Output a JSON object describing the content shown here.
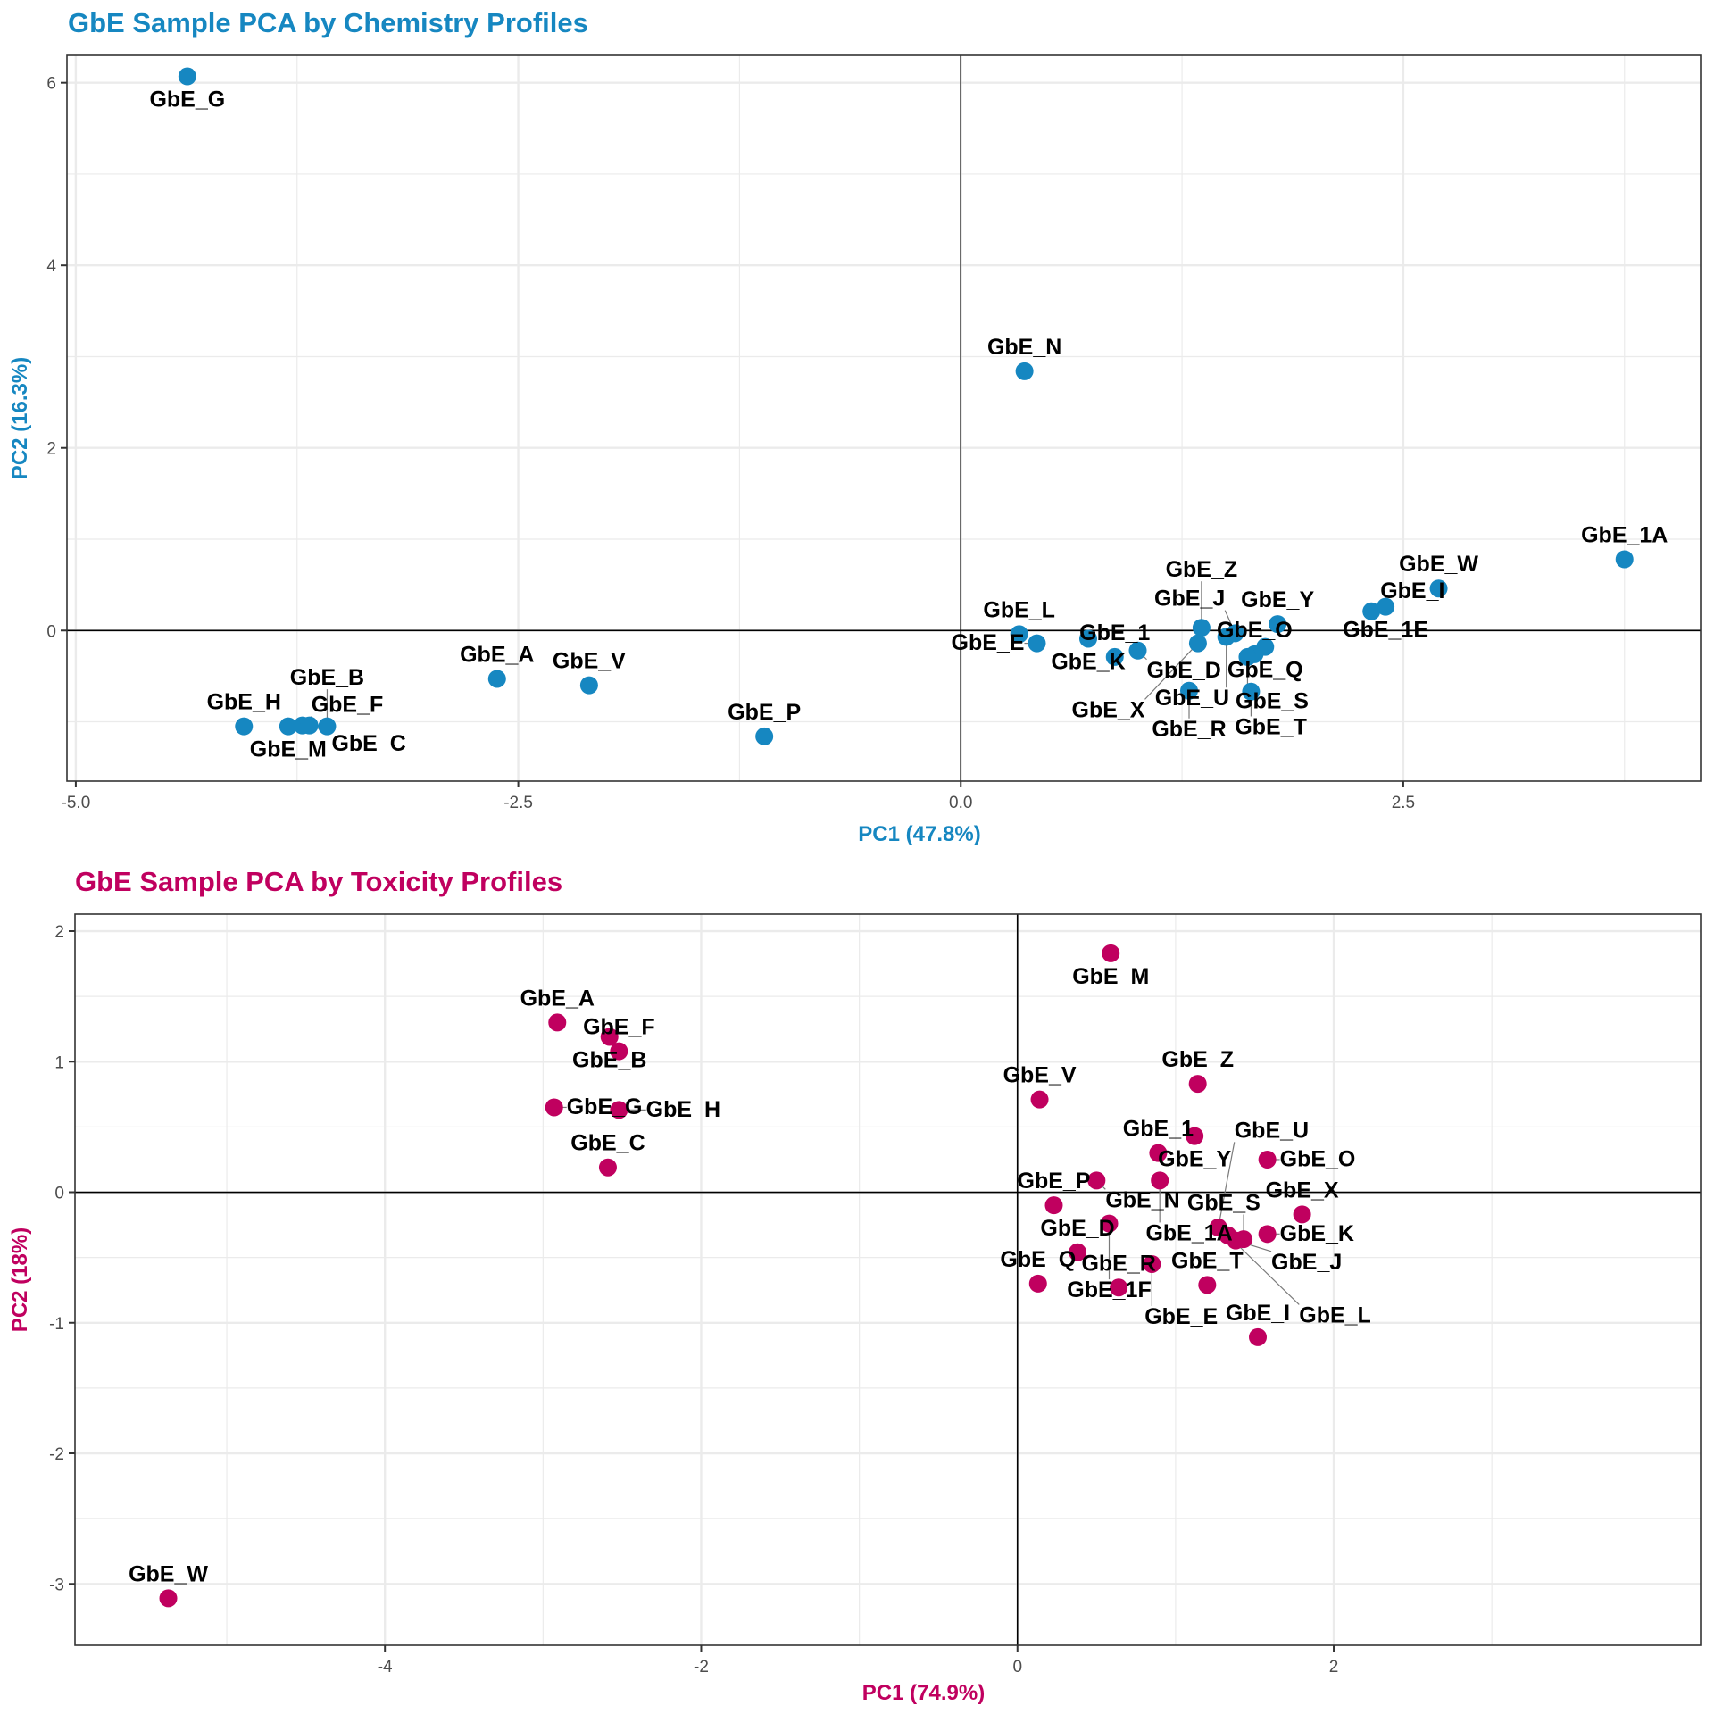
{
  "colors": {
    "chemistry": "#1687c1",
    "toxicity": "#c0005f",
    "grid": "#ebebeb",
    "axis_text": "#4d4d4d",
    "panel_border": "#333333"
  },
  "chart_data": [
    {
      "type": "scatter",
      "title": "GbE Sample PCA by Chemistry Profiles",
      "xlabel": "PC1 (47.8%)",
      "ylabel": "PC2 (16.3%)",
      "xlim": [
        -5.05,
        4.18
      ],
      "ylim": [
        -1.65,
        6.3
      ],
      "xticks": [
        -5.0,
        -2.5,
        0.0,
        2.5
      ],
      "xtick_labels": [
        "-5.0",
        "-2.5",
        "0.0",
        "2.5"
      ],
      "yticks": [
        0,
        2,
        4,
        6
      ],
      "ytick_labels": [
        "0",
        "2",
        "4",
        "6"
      ],
      "x_minor": [
        -3.75,
        -1.25,
        1.25,
        3.75
      ],
      "y_minor": [
        -1,
        1,
        3,
        5
      ],
      "grid": true,
      "reference_lines": {
        "x": 0,
        "y": 0
      },
      "legend": "none",
      "points": [
        {
          "label": "GbE_G",
          "x": -4.37,
          "y": 6.07
        },
        {
          "label": "GbE_N",
          "x": 0.36,
          "y": 2.84
        },
        {
          "label": "GbE_1A",
          "x": 3.75,
          "y": 0.78
        },
        {
          "label": "GbE_W",
          "x": 2.7,
          "y": 0.46
        },
        {
          "label": "GbE_1E",
          "x": 2.4,
          "y": 0.26
        },
        {
          "label": "GbE_I",
          "x": 2.32,
          "y": 0.21
        },
        {
          "label": "GbE_Y",
          "x": 1.79,
          "y": 0.07
        },
        {
          "label": "GbE_Z",
          "x": 1.36,
          "y": 0.03
        },
        {
          "label": "GbE_J",
          "x": 1.55,
          "y": -0.03
        },
        {
          "label": "GbE_U",
          "x": 1.5,
          "y": -0.07
        },
        {
          "label": "GbE_Q",
          "x": 1.72,
          "y": -0.18
        },
        {
          "label": "GbE_O",
          "x": 1.66,
          "y": -0.26
        },
        {
          "label": "GbE_S",
          "x": 1.62,
          "y": -0.29
        },
        {
          "label": "GbE_X",
          "x": 1.34,
          "y": -0.14
        },
        {
          "label": "GbE_R",
          "x": 1.29,
          "y": -0.66
        },
        {
          "label": "GbE_T",
          "x": 1.64,
          "y": -0.67
        },
        {
          "label": "GbE_K",
          "x": 0.72,
          "y": -0.09
        },
        {
          "label": "GbE_D",
          "x": 1.0,
          "y": -0.22
        },
        {
          "label": "GbE_L",
          "x": 0.33,
          "y": -0.04
        },
        {
          "label": "GbE_E",
          "x": 0.43,
          "y": -0.14
        },
        {
          "label": "GbE_1",
          "x": 0.87,
          "y": -0.29
        },
        {
          "label": "GbE_V",
          "x": -2.1,
          "y": -0.6
        },
        {
          "label": "GbE_A",
          "x": -2.62,
          "y": -0.53
        },
        {
          "label": "GbE_P",
          "x": -1.11,
          "y": -1.16
        },
        {
          "label": "GbE_H",
          "x": -4.05,
          "y": -1.05
        },
        {
          "label": "GbE_M",
          "x": -3.8,
          "y": -1.05
        },
        {
          "label": "GbE_F",
          "x": -3.72,
          "y": -1.04
        },
        {
          "label": "GbE_C",
          "x": -3.68,
          "y": -1.04
        },
        {
          "label": "GbE_B",
          "x": -3.58,
          "y": -1.05
        }
      ]
    },
    {
      "type": "scatter",
      "title": "GbE Sample PCA by Toxicity Profiles",
      "xlabel": "PC1 (74.9%)",
      "ylabel": "PC2 (18%)",
      "xlim": [
        -5.96,
        4.32
      ],
      "ylim": [
        -3.47,
        2.13
      ],
      "xticks": [
        -4,
        -2,
        0,
        2
      ],
      "xtick_labels": [
        "-4",
        "-2",
        "0",
        "2"
      ],
      "yticks": [
        -3,
        -2,
        -1,
        0,
        1,
        2
      ],
      "ytick_labels": [
        "-3",
        "-2",
        "-1",
        "0",
        "1",
        "2"
      ],
      "x_minor": [
        -5,
        -3,
        -1,
        1,
        3
      ],
      "y_minor": [
        -2.5,
        -1.5,
        -0.5,
        0.5,
        1.5
      ],
      "grid": true,
      "reference_lines": {
        "x": 0,
        "y": 0
      },
      "legend": "none",
      "points": [
        {
          "label": "GbE_M",
          "x": 0.59,
          "y": 1.83
        },
        {
          "label": "GbE_A",
          "x": -2.91,
          "y": 1.3
        },
        {
          "label": "GbE_B",
          "x": -2.58,
          "y": 1.19
        },
        {
          "label": "GbE_F",
          "x": -2.52,
          "y": 1.08
        },
        {
          "label": "GbE_G",
          "x": -2.93,
          "y": 0.65
        },
        {
          "label": "GbE_H",
          "x": -2.52,
          "y": 0.63
        },
        {
          "label": "GbE_C",
          "x": -2.59,
          "y": 0.19
        },
        {
          "label": "GbE_W",
          "x": -5.37,
          "y": -3.11
        },
        {
          "label": "GbE_V",
          "x": 0.14,
          "y": 0.71
        },
        {
          "label": "GbE_Z",
          "x": 1.14,
          "y": 0.83
        },
        {
          "label": "GbE_1",
          "x": 0.89,
          "y": 0.3
        },
        {
          "label": "GbE_Y",
          "x": 1.12,
          "y": 0.43
        },
        {
          "label": "GbE_1A",
          "x": 0.9,
          "y": 0.09
        },
        {
          "label": "GbE_N",
          "x": 0.5,
          "y": 0.09
        },
        {
          "label": "GbE_P",
          "x": 0.23,
          "y": -0.1
        },
        {
          "label": "GbE_1F",
          "x": 0.58,
          "y": -0.24
        },
        {
          "label": "GbE_D",
          "x": 0.38,
          "y": -0.46
        },
        {
          "label": "GbE_E",
          "x": 0.85,
          "y": -0.55
        },
        {
          "label": "GbE_Q",
          "x": 0.13,
          "y": -0.7
        },
        {
          "label": "GbE_R",
          "x": 0.64,
          "y": -0.73
        },
        {
          "label": "GbE_T",
          "x": 1.2,
          "y": -0.71
        },
        {
          "label": "GbE_I",
          "x": 1.52,
          "y": -1.11
        },
        {
          "label": "GbE_O",
          "x": 1.58,
          "y": 0.25
        },
        {
          "label": "GbE_X",
          "x": 1.8,
          "y": -0.17
        },
        {
          "label": "GbE_U",
          "x": 1.27,
          "y": -0.27
        },
        {
          "label": "GbE_L",
          "x": 1.33,
          "y": -0.33
        },
        {
          "label": "GbE_J",
          "x": 1.38,
          "y": -0.37
        },
        {
          "label": "GbE_K",
          "x": 1.58,
          "y": -0.32
        },
        {
          "label": "GbE_S",
          "x": 1.43,
          "y": -0.36
        }
      ]
    }
  ]
}
